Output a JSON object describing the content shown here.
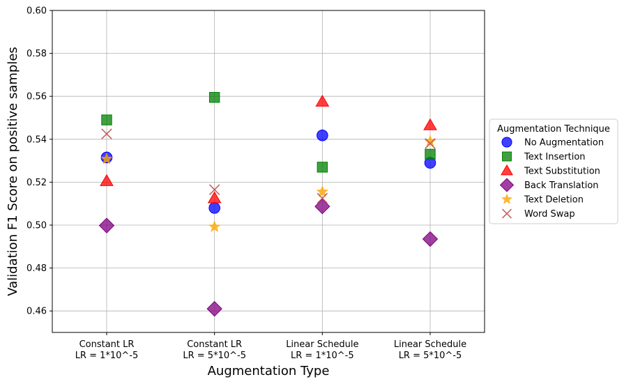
{
  "chart_data": {
    "type": "scatter",
    "xlabel": "Augmentation Type",
    "ylabel": "Validation F1 Score on positive samples",
    "ylim": [
      0.45,
      0.6
    ],
    "yticks": [
      "0.46",
      "0.48",
      "0.50",
      "0.52",
      "0.54",
      "0.56",
      "0.58",
      "0.60"
    ],
    "categories": [
      {
        "line1": "Constant LR",
        "line2": "LR = 1*10^-5"
      },
      {
        "line1": "Constant LR",
        "line2": "LR = 5*10^-5"
      },
      {
        "line1": "Linear Schedule",
        "line2": "LR = 1*10^-5"
      },
      {
        "line1": "Linear Schedule",
        "line2": "LR = 5*10^-5"
      }
    ],
    "grid": true,
    "legend": {
      "title": "Augmentation Technique",
      "placement": "right-outside"
    },
    "series": [
      {
        "name": "No Augmentation",
        "marker": "circle",
        "color": "#0000ff",
        "values": [
          0.5315,
          0.508,
          0.5418,
          0.529
        ]
      },
      {
        "name": "Text Insertion",
        "marker": "square",
        "color": "#008000",
        "values": [
          0.549,
          0.5595,
          0.527,
          0.533
        ]
      },
      {
        "name": "Text Substitution",
        "marker": "triangle",
        "color": "#ff0000",
        "values": [
          0.5205,
          0.5125,
          0.5575,
          0.5465
        ]
      },
      {
        "name": "Back Translation",
        "marker": "diamond",
        "color": "#800080",
        "values": [
          0.4998,
          0.461,
          0.5087,
          0.4935
        ]
      },
      {
        "name": "Text Deletion",
        "marker": "star",
        "color": "#ffa500",
        "values": [
          0.5308,
          0.4992,
          0.5155,
          0.539
        ]
      },
      {
        "name": "Word Swap",
        "marker": "x",
        "color": "#c0504d",
        "values": [
          0.5425,
          0.5165,
          0.5125,
          0.538
        ]
      }
    ]
  }
}
